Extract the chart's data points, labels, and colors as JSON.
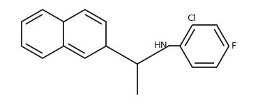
{
  "background_color": "#ffffff",
  "line_color": "#1a1a1a",
  "bond_lw": 1.3,
  "dbo": 0.055,
  "label_Cl": "Cl",
  "label_F": "F",
  "label_HN": "HN",
  "fs": 9.5
}
